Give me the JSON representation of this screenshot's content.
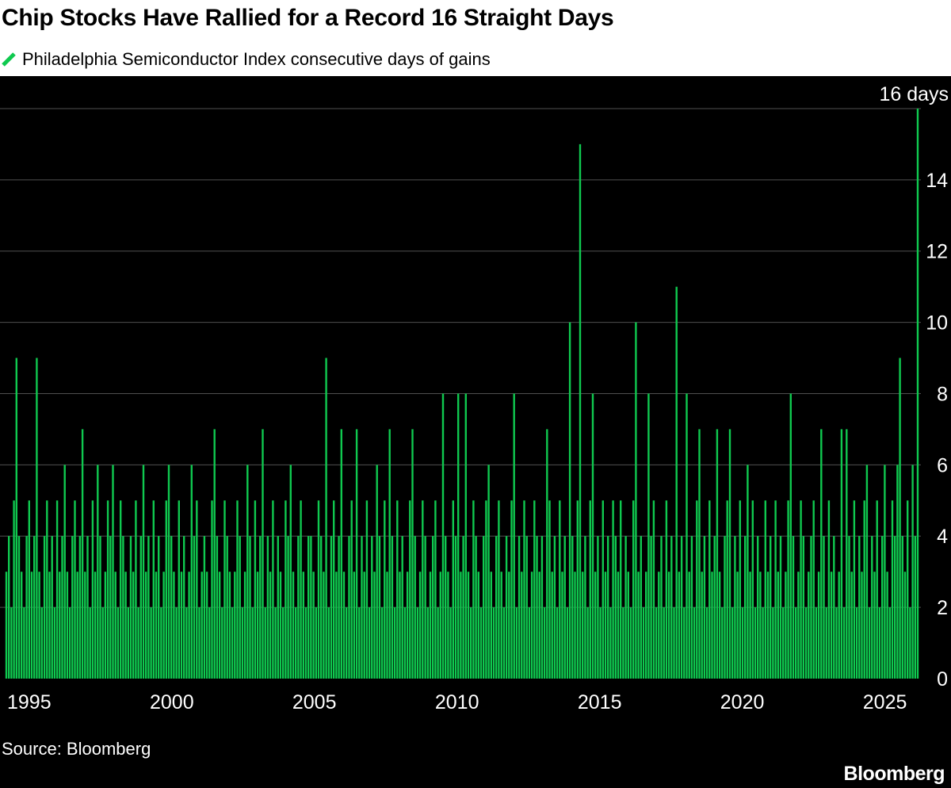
{
  "header": {
    "title": "Chip Stocks Have Rallied for a Record 16 Straight Days",
    "legend_label": "Philadelphia Semiconductor Index consecutive days of gains"
  },
  "footer": {
    "source": "Source: Bloomberg",
    "logo": "Bloomberg"
  },
  "colors": {
    "bar": "#0fc94f",
    "grid": "#4f4f4f",
    "chart_bg": "#000000",
    "header_bg": "#ffffff",
    "text_light": "#ffffff",
    "text_dark": "#000000"
  },
  "chart_data": {
    "type": "bar",
    "title": "Chip Stocks Have Rallied for a Record 16 Straight Days",
    "legend": "Philadelphia Semiconductor Index consecutive days of gains",
    "ylabel_top": "16 days",
    "ylim": [
      0,
      16
    ],
    "y_ticks": [
      0,
      2,
      4,
      6,
      8,
      10,
      12,
      14
    ],
    "grid_values": [
      2,
      4,
      6,
      8,
      10,
      12,
      14,
      16
    ],
    "x_ticks": [
      1995,
      2000,
      2005,
      2010,
      2015,
      2020,
      2025
    ],
    "x_domain": [
      1994.2,
      2026.15
    ],
    "max_streak": 16,
    "notable_peaks": [
      {
        "year": 1994.6,
        "value": 9
      },
      {
        "year": 1995.3,
        "value": 9
      },
      {
        "year": 2005.4,
        "value": 9
      },
      {
        "year": 2013.9,
        "value": 10
      },
      {
        "year": 2014.3,
        "value": 15
      },
      {
        "year": 2016.2,
        "value": 10
      },
      {
        "year": 2017.6,
        "value": 11
      },
      {
        "year": 2025.4,
        "value": 9
      },
      {
        "year": 2026.1,
        "value": 16
      }
    ],
    "values": [
      3,
      4,
      2,
      5,
      9,
      4,
      3,
      2,
      4,
      5,
      3,
      4,
      9,
      3,
      2,
      4,
      5,
      3,
      4,
      2,
      5,
      3,
      4,
      6,
      3,
      2,
      4,
      5,
      3,
      4,
      7,
      3,
      4,
      2,
      5,
      3,
      6,
      4,
      2,
      3,
      5,
      4,
      6,
      3,
      2,
      5,
      4,
      3,
      2,
      4,
      3,
      5,
      2,
      4,
      6,
      3,
      4,
      2,
      5,
      3,
      4,
      2,
      3,
      5,
      6,
      4,
      3,
      2,
      5,
      3,
      4,
      2,
      3,
      6,
      4,
      5,
      2,
      3,
      4,
      3,
      2,
      5,
      7,
      4,
      3,
      2,
      5,
      4,
      3,
      2,
      3,
      5,
      4,
      2,
      3,
      6,
      4,
      2,
      5,
      3,
      4,
      7,
      2,
      4,
      3,
      5,
      2,
      4,
      3,
      2,
      5,
      4,
      6,
      3,
      2,
      4,
      5,
      3,
      2,
      4,
      4,
      3,
      2,
      5,
      4,
      3,
      9,
      2,
      4,
      5,
      3,
      4,
      7,
      3,
      2,
      4,
      5,
      3,
      7,
      2,
      4,
      3,
      5,
      2,
      4,
      3,
      6,
      4,
      2,
      5,
      3,
      7,
      4,
      2,
      5,
      3,
      4,
      2,
      3,
      5,
      7,
      4,
      2,
      3,
      5,
      4,
      2,
      3,
      4,
      5,
      2,
      3,
      8,
      4,
      3,
      2,
      5,
      4,
      8,
      3,
      4,
      8,
      3,
      2,
      5,
      4,
      3,
      2,
      4,
      5,
      6,
      3,
      2,
      4,
      5,
      3,
      2,
      4,
      3,
      5,
      8,
      2,
      4,
      3,
      5,
      4,
      2,
      3,
      5,
      4,
      3,
      4,
      2,
      7,
      5,
      3,
      4,
      2,
      5,
      3,
      4,
      2,
      10,
      4,
      3,
      5,
      15,
      3,
      4,
      2,
      5,
      8,
      3,
      4,
      2,
      5,
      3,
      4,
      2,
      5,
      4,
      3,
      5,
      2,
      4,
      3,
      2,
      5,
      10,
      3,
      4,
      2,
      3,
      8,
      4,
      5,
      2,
      3,
      4,
      2,
      5,
      3,
      4,
      2,
      11,
      3,
      4,
      2,
      8,
      3,
      4,
      2,
      5,
      7,
      3,
      4,
      2,
      5,
      3,
      4,
      7,
      3,
      2,
      4,
      5,
      7,
      2,
      4,
      3,
      5,
      2,
      4,
      6,
      3,
      5,
      2,
      4,
      3,
      2,
      5,
      3,
      4,
      2,
      5,
      3,
      4,
      2,
      3,
      5,
      8,
      4,
      2,
      3,
      5,
      4,
      2,
      3,
      4,
      5,
      2,
      3,
      7,
      4,
      2,
      5,
      3,
      4,
      2,
      3,
      7,
      2,
      7,
      4,
      3,
      5,
      2,
      4,
      3,
      5,
      6,
      2,
      4,
      3,
      5,
      2,
      4,
      6,
      3,
      2,
      5,
      4,
      6,
      9,
      4,
      3,
      5,
      2,
      6,
      4,
      16
    ]
  }
}
